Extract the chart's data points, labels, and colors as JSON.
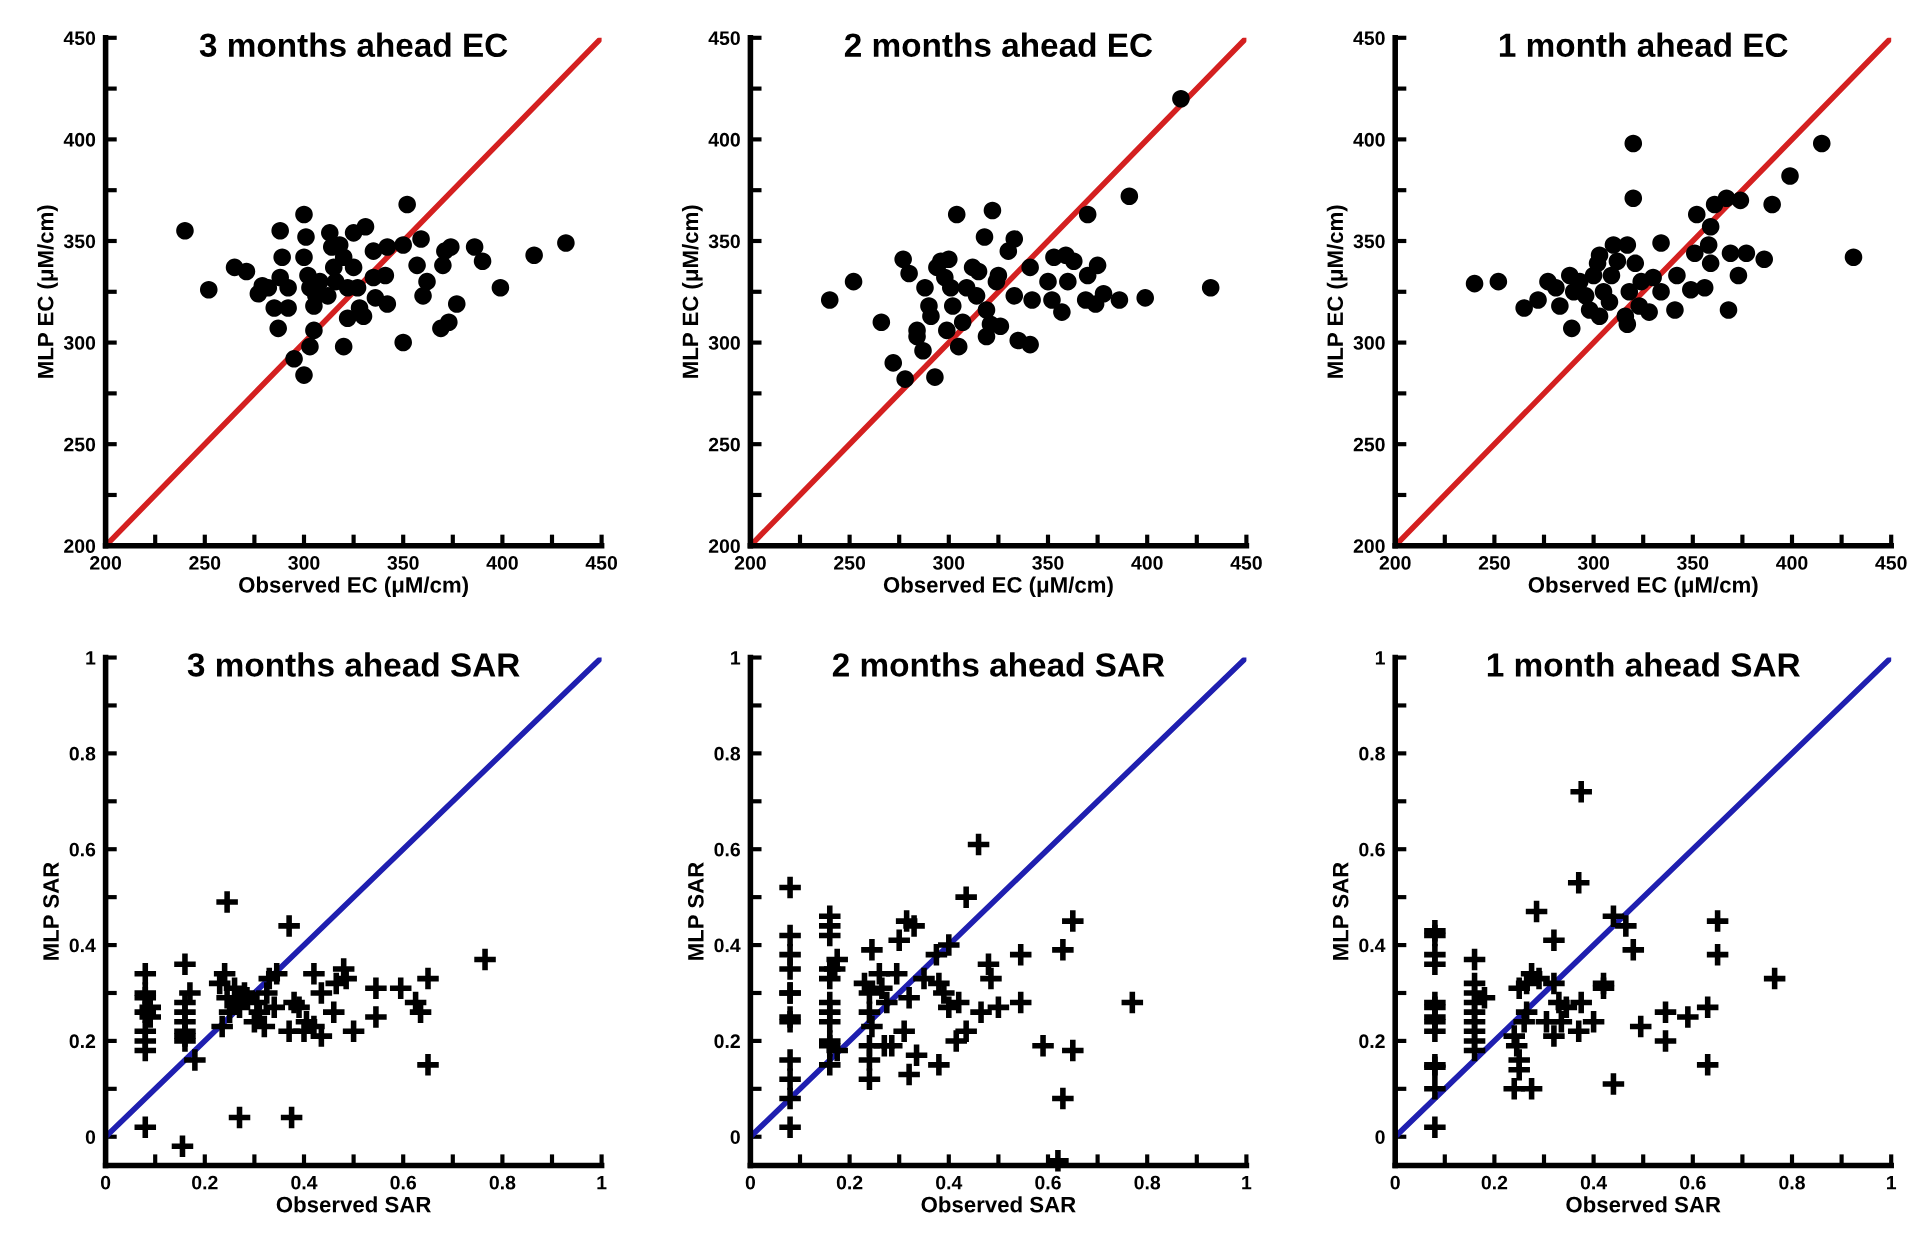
{
  "chart_data": [
    {
      "type": "scatter",
      "title": "3 months ahead EC",
      "xlabel": "Observed EC (μM/cm)",
      "ylabel": "MLP EC (μM/cm)",
      "xlim": [
        200,
        450
      ],
      "ylim": [
        200,
        450
      ],
      "xticks": [
        200,
        {
          "value": 225,
          "label": null
        },
        250,
        {
          "value": 275,
          "label": null
        },
        300,
        {
          "value": 325,
          "label": null
        },
        350,
        {
          "value": 375,
          "label": null
        },
        400,
        {
          "value": 425,
          "label": null
        },
        450
      ],
      "yticks": [
        200,
        {
          "value": 225,
          "label": null
        },
        250,
        {
          "value": 275,
          "label": null
        },
        300,
        {
          "value": 325,
          "label": null
        },
        350,
        {
          "value": 375,
          "label": null
        },
        400,
        {
          "value": 425,
          "label": null
        },
        450
      ],
      "marker": "circle",
      "series": [
        {
          "color": "#000000",
          "x": [
            240,
            252,
            265,
            271,
            279,
            277,
            282,
            285,
            287,
            288,
            289,
            288,
            292,
            292,
            295,
            300,
            301,
            300,
            302,
            303,
            303,
            300,
            305,
            305,
            306,
            308,
            312,
            313,
            314,
            315,
            316,
            318,
            320,
            320,
            322,
            322,
            325,
            325,
            327,
            328,
            330,
            331,
            335,
            335,
            336,
            341,
            342,
            342,
            350,
            350,
            352,
            357,
            359,
            362,
            360,
            369,
            370,
            371,
            373,
            374,
            377,
            386,
            390,
            399,
            416,
            432
          ],
          "values": [
            355,
            326,
            337,
            335,
            328,
            324,
            327,
            317,
            307,
            355,
            342,
            332,
            317,
            327,
            292,
            363,
            352,
            342,
            333,
            327,
            298,
            284,
            306,
            318,
            323,
            330,
            323,
            354,
            347,
            337,
            330,
            348,
            342,
            298,
            327,
            312,
            354,
            337,
            327,
            317,
            313,
            357,
            345,
            332,
            322,
            333,
            319,
            347,
            300,
            348,
            368,
            338,
            351,
            330,
            323,
            307,
            338,
            345,
            310,
            347,
            319,
            347,
            340,
            327,
            343,
            349
          ]
        },
        {
          "type": "line",
          "color": "#d42020",
          "x": [
            200,
            450
          ],
          "values": [
            200,
            450
          ],
          "marker": "none"
        }
      ]
    },
    {
      "type": "scatter",
      "title": "2 months ahead EC",
      "xlabel": "Observed EC (μM/cm)",
      "ylabel": "MLP EC (μM/cm)",
      "xlim": [
        200,
        450
      ],
      "ylim": [
        200,
        450
      ],
      "xticks": [
        200,
        {
          "value": 225,
          "label": null
        },
        250,
        {
          "value": 275,
          "label": null
        },
        300,
        {
          "value": 325,
          "label": null
        },
        350,
        {
          "value": 375,
          "label": null
        },
        400,
        {
          "value": 425,
          "label": null
        },
        450
      ],
      "yticks": [
        200,
        {
          "value": 225,
          "label": null
        },
        250,
        {
          "value": 275,
          "label": null
        },
        300,
        {
          "value": 325,
          "label": null
        },
        350,
        {
          "value": 375,
          "label": null
        },
        400,
        {
          "value": 425,
          "label": null
        },
        450
      ],
      "marker": "circle",
      "series": [
        {
          "color": "#000000",
          "x": [
            240,
            252,
            266,
            272,
            277,
            280,
            278,
            284,
            284,
            287,
            288,
            290,
            291,
            293,
            294,
            296,
            298,
            299,
            300,
            301,
            302,
            304,
            305,
            307,
            309,
            312,
            314,
            315,
            318,
            319,
            319,
            321,
            322,
            324,
            325,
            326,
            330,
            333,
            333,
            335,
            341,
            342,
            341,
            350,
            352,
            353,
            357,
            359,
            360,
            363,
            370,
            370,
            369,
            375,
            374,
            378,
            386,
            391,
            399,
            417,
            432
          ],
          "values": [
            321,
            330,
            310,
            290,
            341,
            334,
            282,
            306,
            303,
            296,
            327,
            318,
            313,
            283,
            337,
            340,
            332,
            306,
            341,
            327,
            318,
            363,
            298,
            310,
            327,
            337,
            323,
            335,
            352,
            316,
            303,
            309,
            365,
            330,
            333,
            308,
            345,
            351,
            323,
            301,
            337,
            321,
            299,
            330,
            321,
            342,
            315,
            343,
            330,
            340,
            363,
            333,
            321,
            338,
            319,
            324,
            321,
            372,
            322,
            420,
            327
          ]
        },
        {
          "type": "line",
          "color": "#d42020",
          "x": [
            200,
            450
          ],
          "values": [
            200,
            450
          ],
          "marker": "none"
        }
      ]
    },
    {
      "type": "scatter",
      "title": "1 month ahead EC",
      "xlabel": "Observed EC (μM/cm)",
      "ylabel": "MLP EC (μM/cm)",
      "xlim": [
        200,
        450
      ],
      "ylim": [
        200,
        450
      ],
      "xticks": [
        200,
        {
          "value": 225,
          "label": null
        },
        250,
        {
          "value": 275,
          "label": null
        },
        300,
        {
          "value": 325,
          "label": null
        },
        350,
        {
          "value": 375,
          "label": null
        },
        400,
        {
          "value": 425,
          "label": null
        },
        450
      ],
      "yticks": [
        200,
        {
          "value": 225,
          "label": null
        },
        250,
        {
          "value": 275,
          "label": null
        },
        300,
        {
          "value": 325,
          "label": null
        },
        350,
        {
          "value": 375,
          "label": null
        },
        400,
        {
          "value": 425,
          "label": null
        },
        450
      ],
      "marker": "circle",
      "series": [
        {
          "color": "#000000",
          "x": [
            240,
            252,
            265,
            272,
            277,
            281,
            283,
            288,
            289,
            290,
            293,
            296,
            298,
            300,
            302,
            303,
            303,
            305,
            308,
            309,
            310,
            312,
            316,
            317,
            317,
            318,
            320,
            320,
            321,
            323,
            324,
            328,
            330,
            334,
            334,
            341,
            342,
            349,
            352,
            351,
            356,
            358,
            359,
            359,
            361,
            367,
            368,
            369,
            373,
            374,
            377,
            386,
            390,
            399,
            415,
            431
          ],
          "values": [
            329,
            330,
            317,
            321,
            330,
            327,
            318,
            333,
            307,
            325,
            330,
            323,
            316,
            333,
            339,
            343,
            313,
            325,
            320,
            333,
            348,
            340,
            313,
            348,
            309,
            325,
            398,
            371,
            339,
            318,
            330,
            315,
            332,
            349,
            325,
            316,
            333,
            326,
            363,
            344,
            327,
            348,
            357,
            339,
            368,
            371,
            316,
            344,
            333,
            370,
            344,
            341,
            368,
            382,
            398,
            342
          ]
        },
        {
          "type": "line",
          "color": "#d42020",
          "x": [
            200,
            450
          ],
          "values": [
            200,
            450
          ],
          "marker": "none"
        }
      ]
    },
    {
      "type": "scatter",
      "title": "3 months ahead SAR",
      "xlabel": "Observed SAR",
      "ylabel": "MLP SAR",
      "xlim": [
        0,
        1
      ],
      "ylim": [
        -0.06,
        1
      ],
      "xticks": [
        0,
        {
          "value": 0.1,
          "label": null
        },
        0.2,
        {
          "value": 0.3,
          "label": null
        },
        0.4,
        {
          "value": 0.5,
          "label": null
        },
        0.6,
        {
          "value": 0.7,
          "label": null
        },
        0.8,
        {
          "value": 0.9,
          "label": null
        },
        1
      ],
      "yticks": [
        0,
        {
          "value": 0.1,
          "label": null
        },
        0.2,
        {
          "value": 0.3,
          "label": null
        },
        0.4,
        {
          "value": 0.5,
          "label": null
        },
        0.6,
        {
          "value": 0.7,
          "label": null
        },
        0.8,
        {
          "value": 0.9,
          "label": null
        },
        1
      ],
      "marker": "cross",
      "series": [
        {
          "color": "#000000",
          "x": [
            0.08,
            0.08,
            0.08,
            0.09,
            0.08,
            0.09,
            0.08,
            0.08,
            0.08,
            0.08,
            0.16,
            0.16,
            0.16,
            0.16,
            0.16,
            0.16,
            0.16,
            0.155,
            0.17,
            0.18,
            0.245,
            0.24,
            0.23,
            0.245,
            0.235,
            0.26,
            0.265,
            0.27,
            0.25,
            0.28,
            0.285,
            0.27,
            0.305,
            0.3,
            0.32,
            0.31,
            0.325,
            0.33,
            0.345,
            0.34,
            0.37,
            0.38,
            0.39,
            0.37,
            0.375,
            0.4,
            0.405,
            0.42,
            0.42,
            0.435,
            0.435,
            0.46,
            0.465,
            0.48,
            0.485,
            0.5,
            0.545,
            0.545,
            0.595,
            0.625,
            0.635,
            0.65,
            0.65,
            0.765
          ],
          "values": [
            0.34,
            0.3,
            0.29,
            0.27,
            0.26,
            0.25,
            0.22,
            0.2,
            0.18,
            0.02,
            0.36,
            0.28,
            0.26,
            0.24,
            0.22,
            0.21,
            0.2,
            -0.02,
            0.3,
            0.16,
            0.49,
            0.34,
            0.32,
            0.29,
            0.23,
            0.31,
            0.28,
            0.27,
            0.26,
            0.3,
            0.29,
            0.04,
            0.28,
            0.24,
            0.23,
            0.26,
            0.3,
            0.33,
            0.34,
            0.27,
            0.44,
            0.28,
            0.27,
            0.22,
            0.04,
            0.22,
            0.24,
            0.34,
            0.23,
            0.21,
            0.3,
            0.26,
            0.32,
            0.35,
            0.33,
            0.22,
            0.31,
            0.25,
            0.31,
            0.28,
            0.26,
            0.33,
            0.15,
            0.37
          ]
        },
        {
          "type": "line",
          "color": "#1f1fb0",
          "x": [
            0,
            1
          ],
          "values": [
            0,
            1
          ],
          "marker": "none"
        }
      ]
    },
    {
      "type": "scatter",
      "title": "2 months ahead SAR",
      "xlabel": "Observed SAR",
      "ylabel": "MLP SAR",
      "xlim": [
        0,
        1
      ],
      "ylim": [
        -0.06,
        1
      ],
      "xticks": [
        0,
        {
          "value": 0.1,
          "label": null
        },
        0.2,
        {
          "value": 0.3,
          "label": null
        },
        0.4,
        {
          "value": 0.5,
          "label": null
        },
        0.6,
        {
          "value": 0.7,
          "label": null
        },
        0.8,
        {
          "value": 0.9,
          "label": null
        },
        1
      ],
      "yticks": [
        0,
        {
          "value": 0.1,
          "label": null
        },
        0.2,
        {
          "value": 0.3,
          "label": null
        },
        0.4,
        {
          "value": 0.5,
          "label": null
        },
        0.6,
        {
          "value": 0.7,
          "label": null
        },
        0.8,
        {
          "value": 0.9,
          "label": null
        },
        1
      ],
      "marker": "cross",
      "series": [
        {
          "color": "#000000",
          "x": [
            0.08,
            0.08,
            0.08,
            0.08,
            0.08,
            0.08,
            0.08,
            0.08,
            0.08,
            0.08,
            0.08,
            0.08,
            0.16,
            0.16,
            0.16,
            0.16,
            0.16,
            0.16,
            0.16,
            0.16,
            0.16,
            0.16,
            0.16,
            0.175,
            0.17,
            0.175,
            0.23,
            0.245,
            0.24,
            0.24,
            0.245,
            0.24,
            0.24,
            0.24,
            0.26,
            0.265,
            0.27,
            0.275,
            0.285,
            0.295,
            0.3,
            0.31,
            0.315,
            0.32,
            0.32,
            0.33,
            0.335,
            0.35,
            0.375,
            0.38,
            0.38,
            0.39,
            0.4,
            0.4,
            0.42,
            0.415,
            0.435,
            0.435,
            0.46,
            0.465,
            0.48,
            0.485,
            0.5,
            0.545,
            0.545,
            0.59,
            0.63,
            0.63,
            0.62,
            0.65,
            0.65,
            0.77
          ],
          "values": [
            0.52,
            0.42,
            0.38,
            0.35,
            0.3,
            0.3,
            0.25,
            0.24,
            0.16,
            0.12,
            0.08,
            0.02,
            0.46,
            0.44,
            0.42,
            0.35,
            0.33,
            0.28,
            0.26,
            0.24,
            0.2,
            0.19,
            0.15,
            0.37,
            0.35,
            0.18,
            0.32,
            0.39,
            0.3,
            0.26,
            0.23,
            0.19,
            0.16,
            0.12,
            0.34,
            0.31,
            0.19,
            0.28,
            0.19,
            0.34,
            0.41,
            0.22,
            0.45,
            0.29,
            0.13,
            0.44,
            0.17,
            0.33,
            0.38,
            0.32,
            0.15,
            0.3,
            0.4,
            0.27,
            0.28,
            0.2,
            0.22,
            0.5,
            0.61,
            0.26,
            0.36,
            0.33,
            0.27,
            0.38,
            0.28,
            0.19,
            0.39,
            0.08,
            -0.05,
            0.45,
            0.18,
            0.28
          ]
        },
        {
          "type": "line",
          "color": "#1f1fb0",
          "x": [
            0,
            1
          ],
          "values": [
            0,
            1
          ],
          "marker": "none"
        }
      ]
    },
    {
      "type": "scatter",
      "title": "1 month ahead SAR",
      "xlabel": "Observed SAR",
      "ylabel": "MLP SAR",
      "xlim": [
        0,
        1
      ],
      "ylim": [
        -0.06,
        1
      ],
      "xticks": [
        0,
        {
          "value": 0.1,
          "label": null
        },
        0.2,
        {
          "value": 0.3,
          "label": null
        },
        0.4,
        {
          "value": 0.5,
          "label": null
        },
        0.6,
        {
          "value": 0.7,
          "label": null
        },
        0.8,
        {
          "value": 0.9,
          "label": null
        },
        1
      ],
      "yticks": [
        0,
        {
          "value": 0.1,
          "label": null
        },
        0.2,
        {
          "value": 0.3,
          "label": null
        },
        0.4,
        {
          "value": 0.5,
          "label": null
        },
        0.6,
        {
          "value": 0.7,
          "label": null
        },
        0.8,
        {
          "value": 0.9,
          "label": null
        },
        1
      ],
      "marker": "cross",
      "series": [
        {
          "color": "#000000",
          "x": [
            0.08,
            0.08,
            0.08,
            0.08,
            0.08,
            0.08,
            0.08,
            0.08,
            0.08,
            0.08,
            0.08,
            0.08,
            0.08,
            0.16,
            0.16,
            0.16,
            0.16,
            0.16,
            0.16,
            0.16,
            0.16,
            0.16,
            0.18,
            0.24,
            0.245,
            0.25,
            0.25,
            0.24,
            0.275,
            0.26,
            0.265,
            0.25,
            0.265,
            0.275,
            0.285,
            0.29,
            0.305,
            0.32,
            0.32,
            0.32,
            0.33,
            0.335,
            0.345,
            0.37,
            0.375,
            0.375,
            0.37,
            0.4,
            0.42,
            0.42,
            0.44,
            0.44,
            0.465,
            0.48,
            0.495,
            0.545,
            0.545,
            0.59,
            0.63,
            0.63,
            0.65,
            0.65,
            0.765
          ],
          "values": [
            0.43,
            0.42,
            0.38,
            0.36,
            0.28,
            0.27,
            0.25,
            0.24,
            0.22,
            0.15,
            0.145,
            0.1,
            0.02,
            0.37,
            0.32,
            0.3,
            0.28,
            0.26,
            0.24,
            0.22,
            0.2,
            0.18,
            0.29,
            0.21,
            0.19,
            0.16,
            0.14,
            0.1,
            0.1,
            0.24,
            0.26,
            0.31,
            0.32,
            0.34,
            0.47,
            0.33,
            0.24,
            0.21,
            0.41,
            0.32,
            0.28,
            0.24,
            0.27,
            0.53,
            0.72,
            0.28,
            0.22,
            0.24,
            0.32,
            0.31,
            0.11,
            0.46,
            0.44,
            0.39,
            0.23,
            0.26,
            0.2,
            0.25,
            0.27,
            0.15,
            0.45,
            0.38,
            0.33
          ]
        },
        {
          "type": "line",
          "color": "#1f1fb0",
          "x": [
            0,
            1
          ],
          "values": [
            0,
            1
          ],
          "marker": "none"
        }
      ]
    }
  ]
}
